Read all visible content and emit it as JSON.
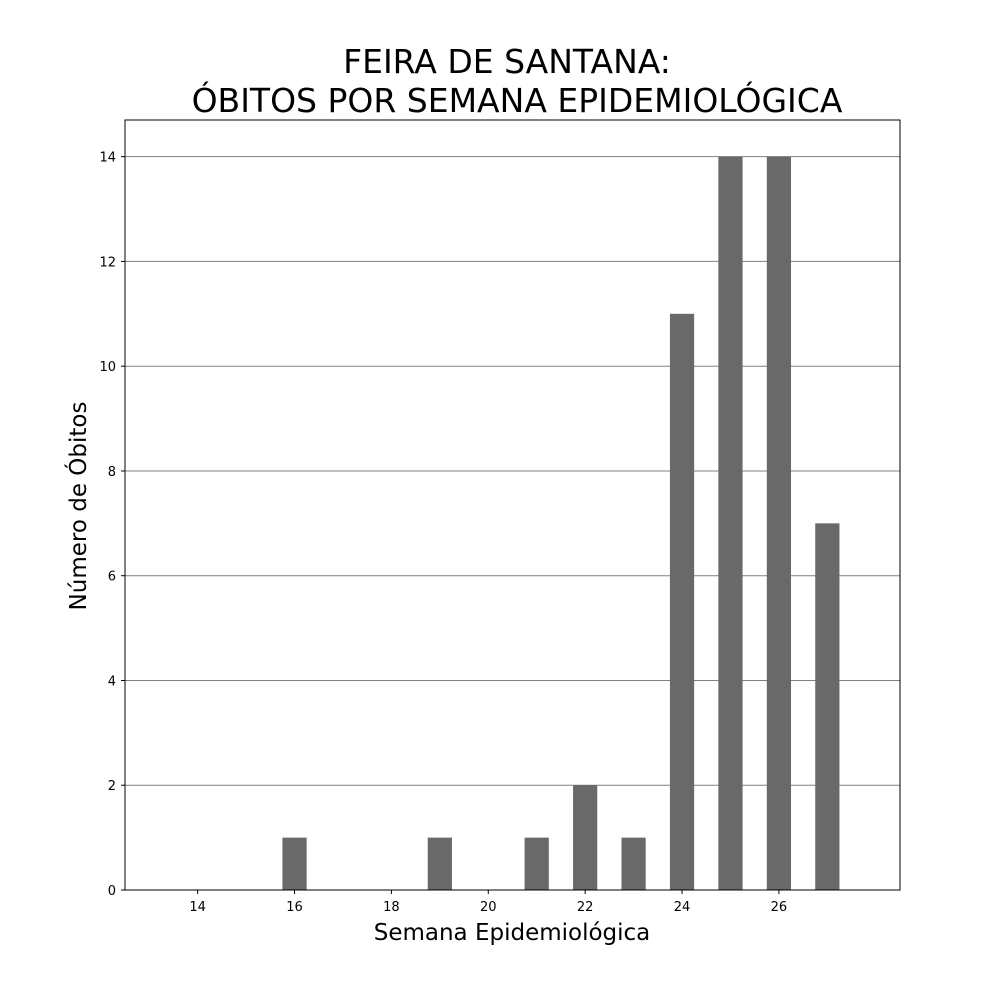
{
  "chart_data": {
    "type": "bar",
    "title_lines": [
      "FEIRA DE SANTANA:",
      "ÓBITOS POR SEMANA EPIDEMIOLÓGICA"
    ],
    "xlabel": "Semana Epidemiológica",
    "ylabel": "Número de Óbitos",
    "x": [
      16,
      19,
      21,
      22,
      23,
      24,
      25,
      26,
      27
    ],
    "values": [
      1,
      1,
      1,
      2,
      1,
      11,
      14,
      14,
      7
    ],
    "bar_width": 0.5,
    "xlim": [
      12.5,
      28.5
    ],
    "ylim": [
      0,
      14.7
    ],
    "xticks": [
      14,
      16,
      18,
      20,
      22,
      24,
      26
    ],
    "yticks": [
      0,
      2,
      4,
      6,
      8,
      10,
      12,
      14
    ],
    "grid": "horizontal",
    "legend": "none",
    "colors": {
      "bar": "#696969",
      "grid": "#808080",
      "frame": "#000000"
    }
  }
}
